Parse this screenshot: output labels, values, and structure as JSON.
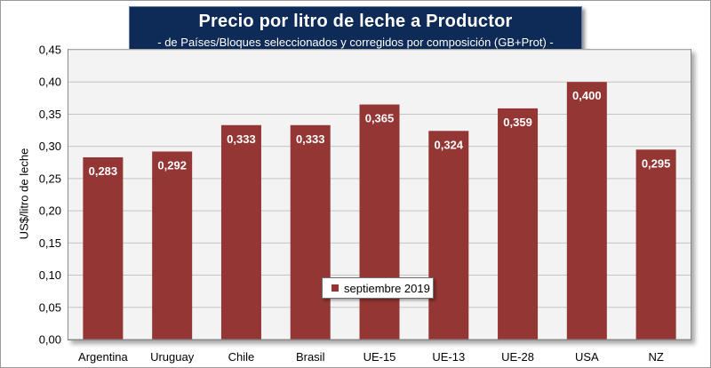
{
  "chart_data": {
    "type": "bar",
    "title": "Precio por litro de leche a Productor",
    "subtitle": "-  de Países/Bloques seleccionados y corregidos por composición (GB+Prot) -",
    "xlabel": "",
    "ylabel": "US$/litro de leche",
    "ylim": [
      0,
      0.45
    ],
    "y_tick_step": 0.05,
    "y_tick_labels": [
      "0,00",
      "0,05",
      "0,10",
      "0,15",
      "0,20",
      "0,25",
      "0,30",
      "0,35",
      "0,40",
      "0,45"
    ],
    "categories": [
      "Argentina",
      "Uruguay",
      "Chile",
      "Brasil",
      "UE-15",
      "UE-13",
      "UE-28",
      "USA",
      "NZ"
    ],
    "series": [
      {
        "name": "septiembre 2019",
        "color": "#943634",
        "values": [
          0.283,
          0.292,
          0.333,
          0.333,
          0.365,
          0.324,
          0.359,
          0.4,
          0.295
        ],
        "data_labels": [
          "0,283",
          "0,292",
          "0,333",
          "0,333",
          "0,365",
          "0,324",
          "0,359",
          "0,400",
          "0,295"
        ]
      }
    ],
    "grid": true,
    "legend_position": "bottom-center"
  }
}
